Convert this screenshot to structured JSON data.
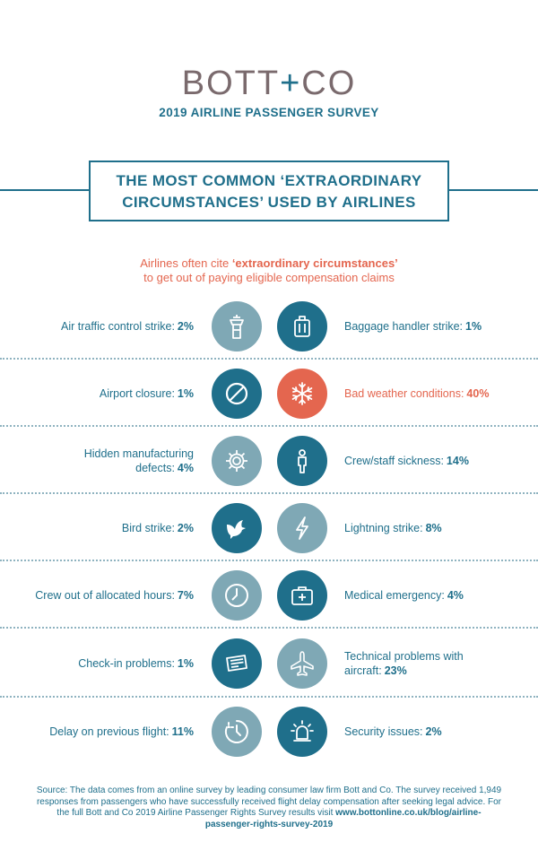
{
  "brand": {
    "left": "BOTT",
    "plus": "+",
    "right": "CO"
  },
  "survey_title": "2019 AIRLINE PASSENGER SURVEY",
  "headline": {
    "line1": "THE MOST COMMON ‘EXTRAORDINARY",
    "line2": "CIRCUMSTANCES’ USED BY AIRLINES"
  },
  "intro": {
    "pre": "Airlines often cite ",
    "bold": "‘extraordinary circumstances’",
    "line2": "to get out of paying eligible compensation claims"
  },
  "colors": {
    "primary": "#1f6f8b",
    "accent": "#e4664f",
    "muted": "#7fa8b5",
    "logo": "#7a6a6d"
  },
  "rows": [
    {
      "left": {
        "label": "Air traffic control strike:",
        "pct": "2%",
        "icon": "control-tower-icon"
      },
      "right": {
        "label": "Baggage handler strike:",
        "pct": "1%",
        "icon": "luggage-icon"
      }
    },
    {
      "left": {
        "label": "Airport closure:",
        "pct": "1%",
        "icon": "prohibited-icon"
      },
      "right": {
        "label": "Bad weather conditions:",
        "pct": "40%",
        "icon": "snowflake-icon"
      }
    },
    {
      "left": {
        "label": "Hidden manufacturing defects:",
        "pct": "4%",
        "icon": "gear-icon"
      },
      "right": {
        "label": "Crew/staff sickness:",
        "pct": "14%",
        "icon": "person-icon"
      }
    },
    {
      "left": {
        "label": "Bird strike:",
        "pct": "2%",
        "icon": "bird-icon"
      },
      "right": {
        "label": "Lightning strike:",
        "pct": "8%",
        "icon": "lightning-icon"
      }
    },
    {
      "left": {
        "label": "Crew out of allocated hours:",
        "pct": "7%",
        "icon": "clock-icon"
      },
      "right": {
        "label": "Medical emergency:",
        "pct": "4%",
        "icon": "medical-kit-icon"
      }
    },
    {
      "left": {
        "label": "Check-in problems:",
        "pct": "1%",
        "icon": "ticket-icon"
      },
      "right": {
        "label": "Technical problems with aircraft:",
        "pct": "23%",
        "icon": "airplane-icon"
      }
    },
    {
      "left": {
        "label": "Delay on previous flight:",
        "pct": "11%",
        "icon": "delay-clock-icon"
      },
      "right": {
        "label": "Security issues:",
        "pct": "2%",
        "icon": "siren-icon"
      }
    }
  ],
  "source": {
    "text": "Source: The data comes from an online survey by leading consumer law firm Bott and Co. The survey received 1,949 responses from passengers who have successfully received flight delay compensation after seeking legal advice. For the full Bott and Co 2019 Airline Passenger Rights Survey results visit ",
    "link": "www.bottonline.co.uk/blog/airline-passenger-rights-survey-2019"
  }
}
